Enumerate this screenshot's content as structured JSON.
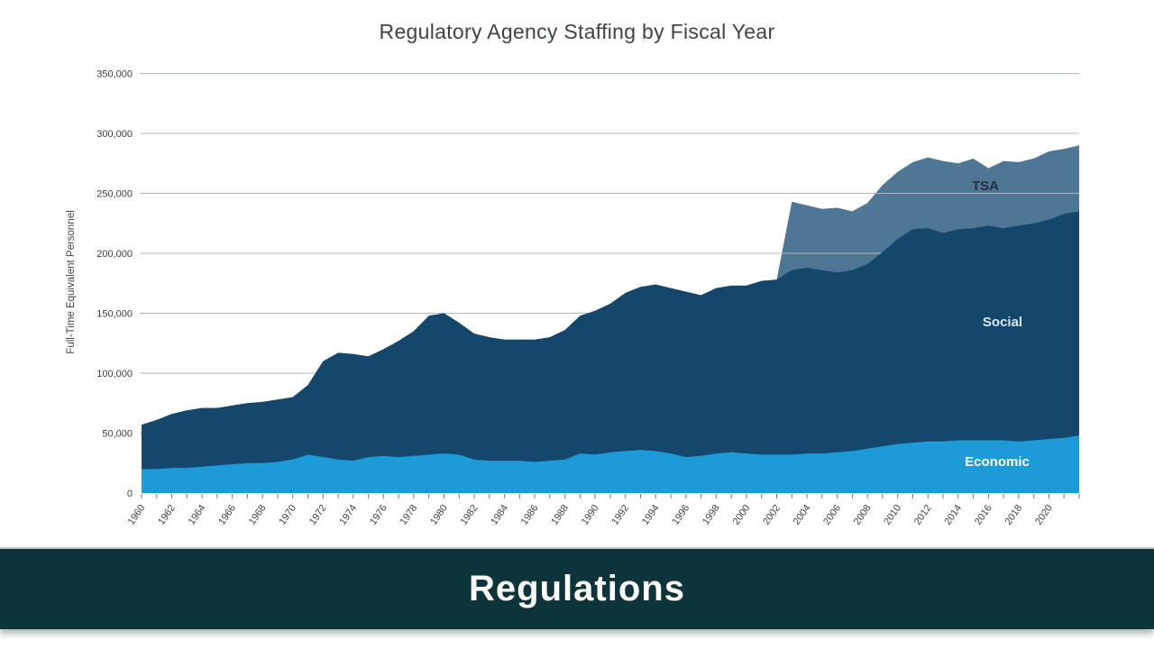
{
  "chart_data": {
    "type": "area",
    "stacked": true,
    "title": "Regulatory Agency Staffing by Fiscal Year",
    "xlabel": "",
    "ylabel": "Full-Time Equivalent Personnel",
    "ylim": [
      0,
      350000
    ],
    "y_ticks": [
      0,
      50000,
      100000,
      150000,
      200000,
      250000,
      300000,
      350000
    ],
    "x_range": [
      1960,
      2022
    ],
    "x_labeled_ticks": [
      1960,
      1962,
      1964,
      1966,
      1968,
      1970,
      1972,
      1974,
      1976,
      1978,
      1980,
      1982,
      1984,
      1986,
      1988,
      1990,
      1992,
      1994,
      1996,
      1998,
      2000,
      2002,
      2004,
      2006,
      2008,
      2010,
      2012,
      2014,
      2016,
      2018,
      2020
    ],
    "grid": "horizontal",
    "legend_position": "inline-labels",
    "years": [
      1960,
      1961,
      1962,
      1963,
      1964,
      1965,
      1966,
      1967,
      1968,
      1969,
      1970,
      1971,
      1972,
      1973,
      1974,
      1975,
      1976,
      1977,
      1978,
      1979,
      1980,
      1981,
      1982,
      1983,
      1984,
      1985,
      1986,
      1987,
      1988,
      1989,
      1990,
      1991,
      1992,
      1993,
      1994,
      1995,
      1996,
      1997,
      1998,
      1999,
      2000,
      2001,
      2002,
      2003,
      2004,
      2005,
      2006,
      2007,
      2008,
      2009,
      2010,
      2011,
      2012,
      2013,
      2014,
      2015,
      2016,
      2017,
      2018,
      2019,
      2020,
      2021,
      2022
    ],
    "series": [
      {
        "name": "Economic",
        "color": "#1d9bd8",
        "label_color": "#ffffff",
        "values": [
          20000,
          20000,
          21000,
          21000,
          22000,
          23000,
          24000,
          25000,
          25000,
          26000,
          28000,
          32000,
          30000,
          28000,
          27000,
          30000,
          31000,
          30000,
          31000,
          32000,
          33000,
          32000,
          28000,
          27000,
          27000,
          27000,
          26000,
          27000,
          28000,
          33000,
          32000,
          34000,
          35000,
          36000,
          35000,
          33000,
          30000,
          31000,
          33000,
          34000,
          33000,
          32000,
          32000,
          32000,
          33000,
          33000,
          34000,
          35000,
          37000,
          39000,
          41000,
          42000,
          43000,
          43000,
          44000,
          44000,
          44000,
          44000,
          43000,
          44000,
          45000,
          46000,
          48000
        ]
      },
      {
        "name": "Social",
        "color": "#15466b",
        "label_color": "#d9e7f2",
        "values": [
          37000,
          41000,
          45000,
          48000,
          49000,
          48000,
          49000,
          50000,
          51000,
          52000,
          52000,
          58000,
          80000,
          89000,
          89000,
          84000,
          89000,
          97000,
          104000,
          116000,
          117000,
          110000,
          105000,
          103000,
          101000,
          101000,
          102000,
          103000,
          108000,
          115000,
          120000,
          124000,
          132000,
          136000,
          139000,
          138000,
          138000,
          134000,
          138000,
          139000,
          140000,
          145000,
          146000,
          154000,
          155000,
          153000,
          150000,
          151000,
          154000,
          162000,
          171000,
          178000,
          178000,
          174000,
          176000,
          177000,
          179000,
          177000,
          180000,
          181000,
          183000,
          187000,
          187000
        ]
      },
      {
        "name": "TSA",
        "color": "#4d7795",
        "label_color": "#252f3a",
        "values": [
          0,
          0,
          0,
          0,
          0,
          0,
          0,
          0,
          0,
          0,
          0,
          0,
          0,
          0,
          0,
          0,
          0,
          0,
          0,
          0,
          0,
          0,
          0,
          0,
          0,
          0,
          0,
          0,
          0,
          0,
          0,
          0,
          0,
          0,
          0,
          0,
          0,
          0,
          0,
          0,
          0,
          0,
          0,
          57000,
          52000,
          51000,
          54000,
          49000,
          51000,
          56000,
          56000,
          56000,
          59000,
          60000,
          55000,
          58000,
          48000,
          56000,
          53000,
          54000,
          57000,
          54000,
          55000
        ]
      }
    ],
    "style": {
      "grid_color": "#b0b8bd",
      "tick_color": "#70767c",
      "axis_text_color": "#3b4045",
      "title_color": "#3f4449"
    }
  },
  "banner": {
    "label": "Regulations",
    "bg": "#0e343b",
    "text_color": "#ffffff"
  }
}
